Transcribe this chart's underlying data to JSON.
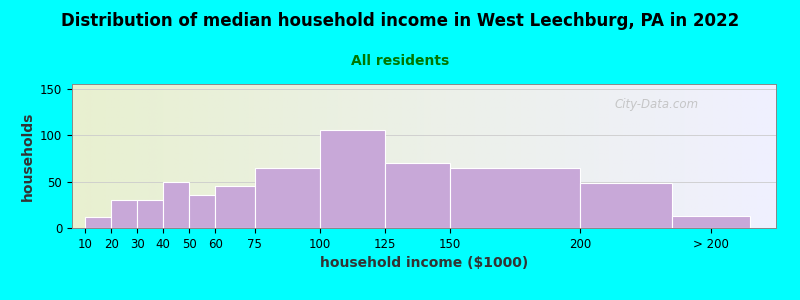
{
  "title": "Distribution of median household income in West Leechburg, PA in 2022",
  "subtitle": "All residents",
  "xlabel": "household income ($1000)",
  "ylabel": "households",
  "background_outer": "#00FFFF",
  "bar_color": "#C8A8D8",
  "values": [
    12,
    30,
    30,
    50,
    35,
    45,
    65,
    105,
    70,
    65,
    48,
    13
  ],
  "bar_lefts": [
    10,
    20,
    30,
    40,
    50,
    60,
    75,
    100,
    125,
    150,
    200,
    235
  ],
  "bar_widths": [
    10,
    10,
    10,
    10,
    10,
    15,
    25,
    25,
    25,
    50,
    35,
    30
  ],
  "xtick_positions": [
    10,
    20,
    30,
    40,
    50,
    60,
    75,
    100,
    125,
    150,
    200,
    250
  ],
  "xtick_labels": [
    "10",
    "20",
    "30",
    "40",
    "50",
    "60",
    "75",
    "100",
    "125",
    "150",
    "200",
    "> 200"
  ],
  "ylim": [
    0,
    155
  ],
  "yticks": [
    0,
    50,
    100,
    150
  ],
  "xlim": [
    5,
    275
  ],
  "title_fontsize": 12,
  "subtitle_fontsize": 10,
  "axis_label_fontsize": 10,
  "tick_fontsize": 8.5,
  "title_color": "#000000",
  "subtitle_color": "#007700",
  "watermark_text": "City-Data.com",
  "plot_bg_color_left": "#E8F0D0",
  "plot_bg_color_right": "#F0F0FF"
}
